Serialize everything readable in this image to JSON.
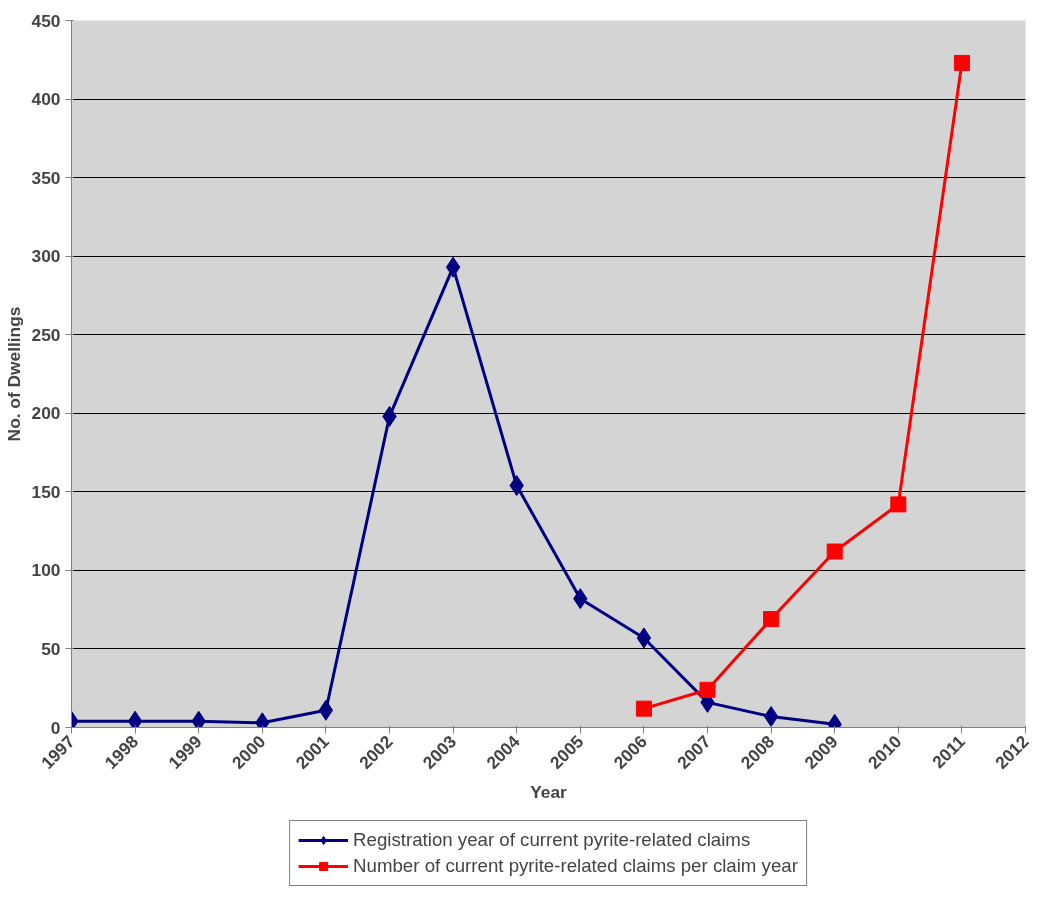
{
  "chart_data": {
    "type": "line",
    "xlabel": "Year",
    "ylabel": "No. of Dwellings",
    "xlim": [
      1997,
      2012
    ],
    "xticks": [
      1997,
      1998,
      1999,
      2000,
      2001,
      2002,
      2003,
      2004,
      2005,
      2006,
      2007,
      2008,
      2009,
      2010,
      2011,
      2012
    ],
    "ylim": [
      0,
      450
    ],
    "yticks": [
      0,
      50,
      100,
      150,
      200,
      250,
      300,
      350,
      400,
      450
    ],
    "grid": "y",
    "legend": "bottom",
    "series": [
      {
        "name": "Registration year of current pyrite-related claims",
        "color": "#000080",
        "marker": "diamond",
        "x": [
          1997,
          1998,
          1999,
          2000,
          2001,
          2002,
          2003,
          2004,
          2005,
          2006,
          2007,
          2008,
          2009
        ],
        "values": [
          4,
          4,
          4,
          3,
          11,
          198,
          293,
          154,
          82,
          57,
          16,
          7,
          2
        ]
      },
      {
        "name": "Number of current pyrite-related claims per claim year",
        "color": "#ff0000",
        "marker": "square",
        "x": [
          2006,
          2007,
          2008,
          2009,
          2010,
          2011
        ],
        "values": [
          12,
          24,
          69,
          112,
          142,
          423
        ]
      }
    ]
  }
}
